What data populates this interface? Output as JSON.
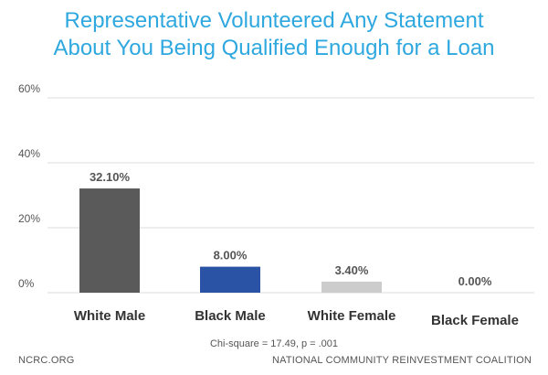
{
  "title_lines": [
    "Representative Volunteered Any Statement",
    "About You Being Qualified Enough for a Loan"
  ],
  "footer": {
    "left": "NCRC.ORG",
    "right": "NATIONAL COMMUNITY REINVESTMENT COALITION"
  },
  "note": "Chi-square = 17.49, p = .001",
  "colors": {
    "title": "#2ea8df",
    "grid": "#dddddd"
  },
  "chart_data": {
    "type": "bar",
    "categories": [
      "White Male",
      "Black Male",
      "White Female",
      "Black Female"
    ],
    "values": [
      32.1,
      8.0,
      3.4,
      0.0
    ],
    "value_labels": [
      "32.10%",
      "8.00%",
      "3.40%",
      "0.00%"
    ],
    "bar_colors": [
      "#5a5a5a",
      "#2a52a5",
      "#cccccc",
      "#cccccc"
    ],
    "ylim": [
      0,
      60
    ],
    "yticks": [
      0,
      20,
      40,
      60
    ],
    "ytick_labels": [
      "0%",
      "20%",
      "40%",
      "60%"
    ],
    "grid": true,
    "xlabel": "",
    "ylabel": ""
  }
}
